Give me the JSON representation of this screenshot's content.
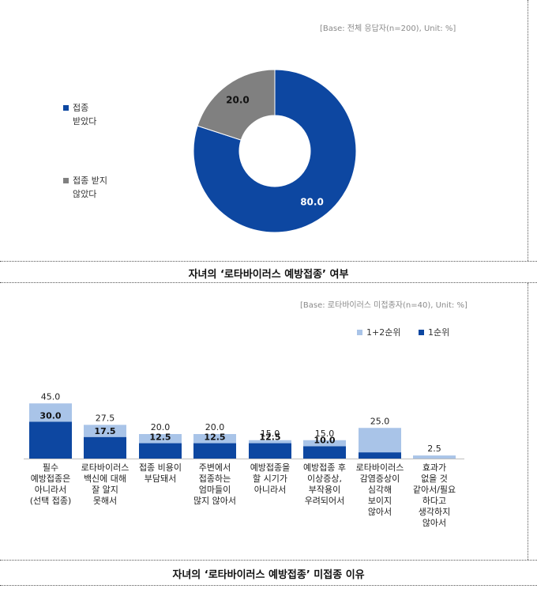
{
  "pie": {
    "base_note": "[Base: 전체 응답자(n=200), Unit: %]",
    "caption": "자녀의 ‘로타바이러스 예방접종’ 여부",
    "colors": [
      "#0d47a1",
      "#808080"
    ],
    "legend": [
      {
        "label": "접종\n받았다"
      },
      {
        "label": "접종 받지\n않았다"
      }
    ]
  },
  "bar": {
    "base_note": "[Base: 로타바이러스 미접종자(n=40), Unit: %]",
    "caption": "자녀의 ‘로타바이러스 예방접종’ 미접종 이유",
    "legend": [
      "1+2순위",
      "1순위"
    ],
    "colors": {
      "series_1_2": "#a9c4e8",
      "series_1": "#0d47a1"
    },
    "category_labels": [
      "필수\n예방접종은\n아니라서\n(선택 접종)",
      "로타바이러스\n백신에 대해\n잘 알지\n못해서",
      "접종 비용이\n부담돼서",
      "주변에서\n접종하는\n엄마들이\n많지 않아서",
      "예방접종을\n할 시기가\n아니라서",
      "예방접종 후\n이상증상,\n부작용이\n우려되어서",
      "로타바이러스\n감염증상이\n심각해\n보이지\n않아서",
      "효과가\n없을 것\n같아서/필요\n하다고\n생각하지\n않아서"
    ]
  },
  "chart_data": [
    {
      "type": "pie",
      "categories": [
        "접종 받았다",
        "접종 받지 않았다"
      ],
      "values": [
        80.0,
        20.0
      ],
      "value_labels": [
        "80.0",
        "20.0"
      ],
      "title": "",
      "style": "donut",
      "legend_placement": "left"
    },
    {
      "type": "bar",
      "categories": [
        "필수 예방접종은 아니라서 (선택 접종)",
        "로타바이러스 백신에 대해 잘 알지 못해서",
        "접종 비용이 부담돼서",
        "주변에서 접종하는 엄마들이 많지 않아서",
        "예방접종을 할 시기가 아니라서",
        "예방접종 후 이상증상, 부작용이 우려되어서",
        "로타바이러스 감염증상이 심각해 보이지 않아서",
        "효과가 없을 것 같아서/필요하다고 생각하지 않아서"
      ],
      "series": [
        {
          "name": "1+2순위",
          "values": [
            45.0,
            27.5,
            20.0,
            20.0,
            15.0,
            15.0,
            25.0,
            2.5
          ],
          "labels": [
            "45.0",
            "27.5",
            "20.0",
            "20.0",
            "15.0",
            "15.0",
            "25.0",
            "2.5"
          ]
        },
        {
          "name": "1순위",
          "values": [
            30.0,
            17.5,
            12.5,
            12.5,
            12.5,
            10.0,
            5.0,
            0
          ],
          "labels": [
            "30.0",
            "17.5",
            "12.5",
            "12.5",
            "12.5",
            "10.0",
            "5.0",
            ""
          ]
        }
      ],
      "overlapping": true,
      "legend_placement": "top-right",
      "grid": false
    }
  ]
}
